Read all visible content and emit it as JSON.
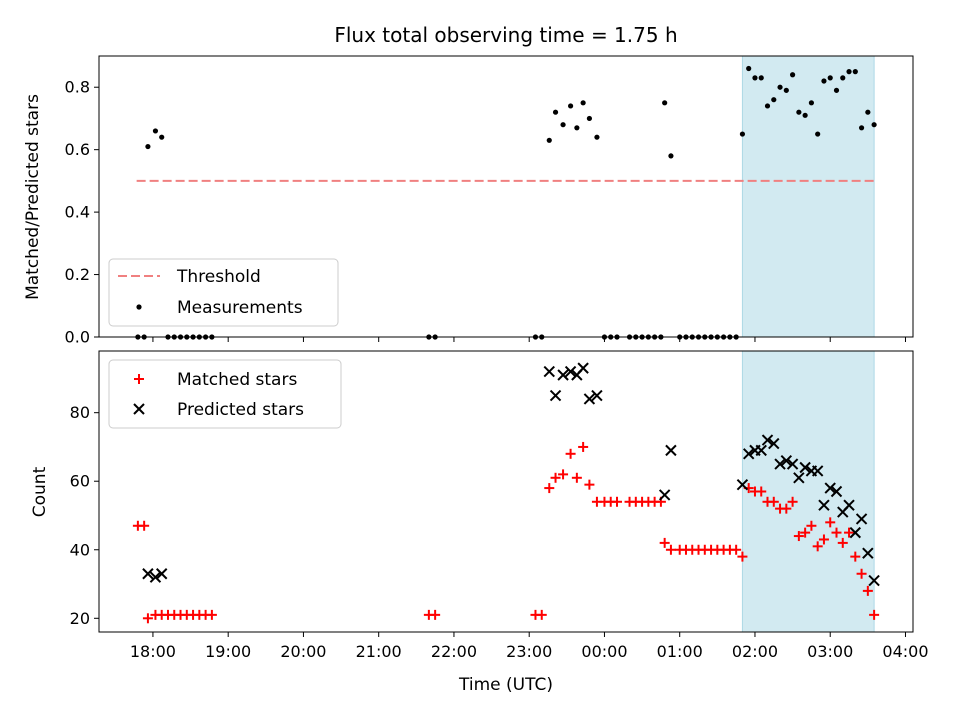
{
  "colors": {
    "threshold": "#f08080",
    "measurement": "#000000",
    "matched": "#ff0000",
    "predicted": "#000000",
    "window_fill": "#add8e6"
  },
  "chart_data": [
    {
      "type": "scatter",
      "title": "Flux total observing time = 1.75 h",
      "xlabel": "",
      "ylabel": "Matched/Predicted stars",
      "xlim": [
        "17:17",
        "04:06"
      ],
      "ylim": [
        0.0,
        0.9
      ],
      "yticks": [
        "0.0",
        "0.2",
        "0.4",
        "0.6",
        "0.8"
      ],
      "highlight_window": [
        "01:50",
        "03:35"
      ],
      "legend_position": "lower-left",
      "threshold": {
        "name": "Threshold",
        "value": 0.5,
        "x_range": [
          "17:47",
          "03:35"
        ]
      },
      "series": [
        {
          "name": "Measurements",
          "points": [
            [
              "17:48",
              0.0
            ],
            [
              "17:53",
              0.0
            ],
            [
              "17:56",
              0.61
            ],
            [
              "18:02",
              0.66
            ],
            [
              "18:07",
              0.64
            ],
            [
              "18:12",
              0.0
            ],
            [
              "18:17",
              0.0
            ],
            [
              "18:22",
              0.0
            ],
            [
              "18:27",
              0.0
            ],
            [
              "18:32",
              0.0
            ],
            [
              "18:37",
              0.0
            ],
            [
              "18:42",
              0.0
            ],
            [
              "18:47",
              0.0
            ],
            [
              "21:40",
              0.0
            ],
            [
              "21:45",
              0.0
            ],
            [
              "23:05",
              0.0
            ],
            [
              "23:10",
              0.0
            ],
            [
              "23:16",
              0.63
            ],
            [
              "23:21",
              0.72
            ],
            [
              "23:27",
              0.68
            ],
            [
              "23:33",
              0.74
            ],
            [
              "23:38",
              0.67
            ],
            [
              "23:43",
              0.75
            ],
            [
              "23:48",
              0.7
            ],
            [
              "23:54",
              0.64
            ],
            [
              "00:00",
              0.0
            ],
            [
              "00:05",
              0.0
            ],
            [
              "00:10",
              0.0
            ],
            [
              "00:20",
              0.0
            ],
            [
              "00:25",
              0.0
            ],
            [
              "00:30",
              0.0
            ],
            [
              "00:35",
              0.0
            ],
            [
              "00:40",
              0.0
            ],
            [
              "00:45",
              0.0
            ],
            [
              "00:48",
              0.75
            ],
            [
              "00:53",
              0.58
            ],
            [
              "01:00",
              0.0
            ],
            [
              "01:05",
              0.0
            ],
            [
              "01:10",
              0.0
            ],
            [
              "01:15",
              0.0
            ],
            [
              "01:20",
              0.0
            ],
            [
              "01:25",
              0.0
            ],
            [
              "01:30",
              0.0
            ],
            [
              "01:35",
              0.0
            ],
            [
              "01:40",
              0.0
            ],
            [
              "01:45",
              0.0
            ],
            [
              "01:50",
              0.65
            ],
            [
              "01:55",
              0.86
            ],
            [
              "02:00",
              0.83
            ],
            [
              "02:05",
              0.83
            ],
            [
              "02:10",
              0.74
            ],
            [
              "02:15",
              0.76
            ],
            [
              "02:20",
              0.8
            ],
            [
              "02:25",
              0.79
            ],
            [
              "02:30",
              0.84
            ],
            [
              "02:35",
              0.72
            ],
            [
              "02:40",
              0.71
            ],
            [
              "02:45",
              0.75
            ],
            [
              "02:50",
              0.65
            ],
            [
              "02:55",
              0.82
            ],
            [
              "03:00",
              0.83
            ],
            [
              "03:05",
              0.79
            ],
            [
              "03:10",
              0.83
            ],
            [
              "03:15",
              0.85
            ],
            [
              "03:20",
              0.85
            ],
            [
              "03:25",
              0.67
            ],
            [
              "03:30",
              0.72
            ],
            [
              "03:35",
              0.68
            ]
          ]
        }
      ]
    },
    {
      "type": "scatter",
      "title": "",
      "xlabel": "Time (UTC)",
      "ylabel": "Count",
      "xlim": [
        "17:17",
        "04:06"
      ],
      "ylim": [
        16,
        98
      ],
      "yticks": [
        "20",
        "40",
        "60",
        "80"
      ],
      "xticks": [
        "18:00",
        "19:00",
        "20:00",
        "21:00",
        "22:00",
        "23:00",
        "00:00",
        "01:00",
        "02:00",
        "03:00",
        "04:00"
      ],
      "highlight_window": [
        "01:50",
        "03:35"
      ],
      "legend_position": "upper-left",
      "series": [
        {
          "name": "Matched stars",
          "marker": "+",
          "points": [
            [
              "17:48",
              47
            ],
            [
              "17:53",
              47
            ],
            [
              "17:56",
              20
            ],
            [
              "18:02",
              21
            ],
            [
              "18:07",
              21
            ],
            [
              "18:12",
              21
            ],
            [
              "18:17",
              21
            ],
            [
              "18:22",
              21
            ],
            [
              "18:27",
              21
            ],
            [
              "18:32",
              21
            ],
            [
              "18:37",
              21
            ],
            [
              "18:42",
              21
            ],
            [
              "18:47",
              21
            ],
            [
              "21:40",
              21
            ],
            [
              "21:45",
              21
            ],
            [
              "23:05",
              21
            ],
            [
              "23:10",
              21
            ],
            [
              "23:16",
              58
            ],
            [
              "23:21",
              61
            ],
            [
              "23:27",
              62
            ],
            [
              "23:33",
              68
            ],
            [
              "23:38",
              61
            ],
            [
              "23:43",
              70
            ],
            [
              "23:48",
              59
            ],
            [
              "23:54",
              54
            ],
            [
              "00:00",
              54
            ],
            [
              "00:05",
              54
            ],
            [
              "00:10",
              54
            ],
            [
              "00:20",
              54
            ],
            [
              "00:25",
              54
            ],
            [
              "00:30",
              54
            ],
            [
              "00:35",
              54
            ],
            [
              "00:40",
              54
            ],
            [
              "00:45",
              54
            ],
            [
              "00:48",
              42
            ],
            [
              "00:53",
              40
            ],
            [
              "01:00",
              40
            ],
            [
              "01:05",
              40
            ],
            [
              "01:10",
              40
            ],
            [
              "01:15",
              40
            ],
            [
              "01:20",
              40
            ],
            [
              "01:25",
              40
            ],
            [
              "01:30",
              40
            ],
            [
              "01:35",
              40
            ],
            [
              "01:40",
              40
            ],
            [
              "01:45",
              40
            ],
            [
              "01:50",
              38
            ],
            [
              "01:55",
              58
            ],
            [
              "02:00",
              57
            ],
            [
              "02:05",
              57
            ],
            [
              "02:10",
              54
            ],
            [
              "02:15",
              54
            ],
            [
              "02:20",
              52
            ],
            [
              "02:25",
              52
            ],
            [
              "02:30",
              54
            ],
            [
              "02:35",
              44
            ],
            [
              "02:40",
              45
            ],
            [
              "02:45",
              47
            ],
            [
              "02:50",
              41
            ],
            [
              "02:55",
              43
            ],
            [
              "03:00",
              48
            ],
            [
              "03:05",
              45
            ],
            [
              "03:10",
              42
            ],
            [
              "03:15",
              45
            ],
            [
              "03:20",
              38
            ],
            [
              "03:25",
              33
            ],
            [
              "03:30",
              28
            ],
            [
              "03:35",
              21
            ]
          ]
        },
        {
          "name": "Predicted stars",
          "marker": "x",
          "points": [
            [
              "17:56",
              33
            ],
            [
              "18:02",
              32
            ],
            [
              "18:07",
              33
            ],
            [
              "23:16",
              92
            ],
            [
              "23:21",
              85
            ],
            [
              "23:27",
              91
            ],
            [
              "23:33",
              92
            ],
            [
              "23:38",
              91
            ],
            [
              "23:43",
              93
            ],
            [
              "23:48",
              84
            ],
            [
              "23:54",
              85
            ],
            [
              "00:48",
              56
            ],
            [
              "00:53",
              69
            ],
            [
              "01:50",
              59
            ],
            [
              "01:55",
              68
            ],
            [
              "02:00",
              69
            ],
            [
              "02:05",
              69
            ],
            [
              "02:10",
              72
            ],
            [
              "02:15",
              71
            ],
            [
              "02:20",
              65
            ],
            [
              "02:25",
              66
            ],
            [
              "02:30",
              65
            ],
            [
              "02:35",
              61
            ],
            [
              "02:40",
              64
            ],
            [
              "02:45",
              63
            ],
            [
              "02:50",
              63
            ],
            [
              "02:55",
              53
            ],
            [
              "03:00",
              58
            ],
            [
              "03:05",
              57
            ],
            [
              "03:10",
              51
            ],
            [
              "03:15",
              53
            ],
            [
              "03:20",
              45
            ],
            [
              "03:25",
              49
            ],
            [
              "03:30",
              39
            ],
            [
              "03:35",
              31
            ]
          ]
        }
      ]
    }
  ]
}
